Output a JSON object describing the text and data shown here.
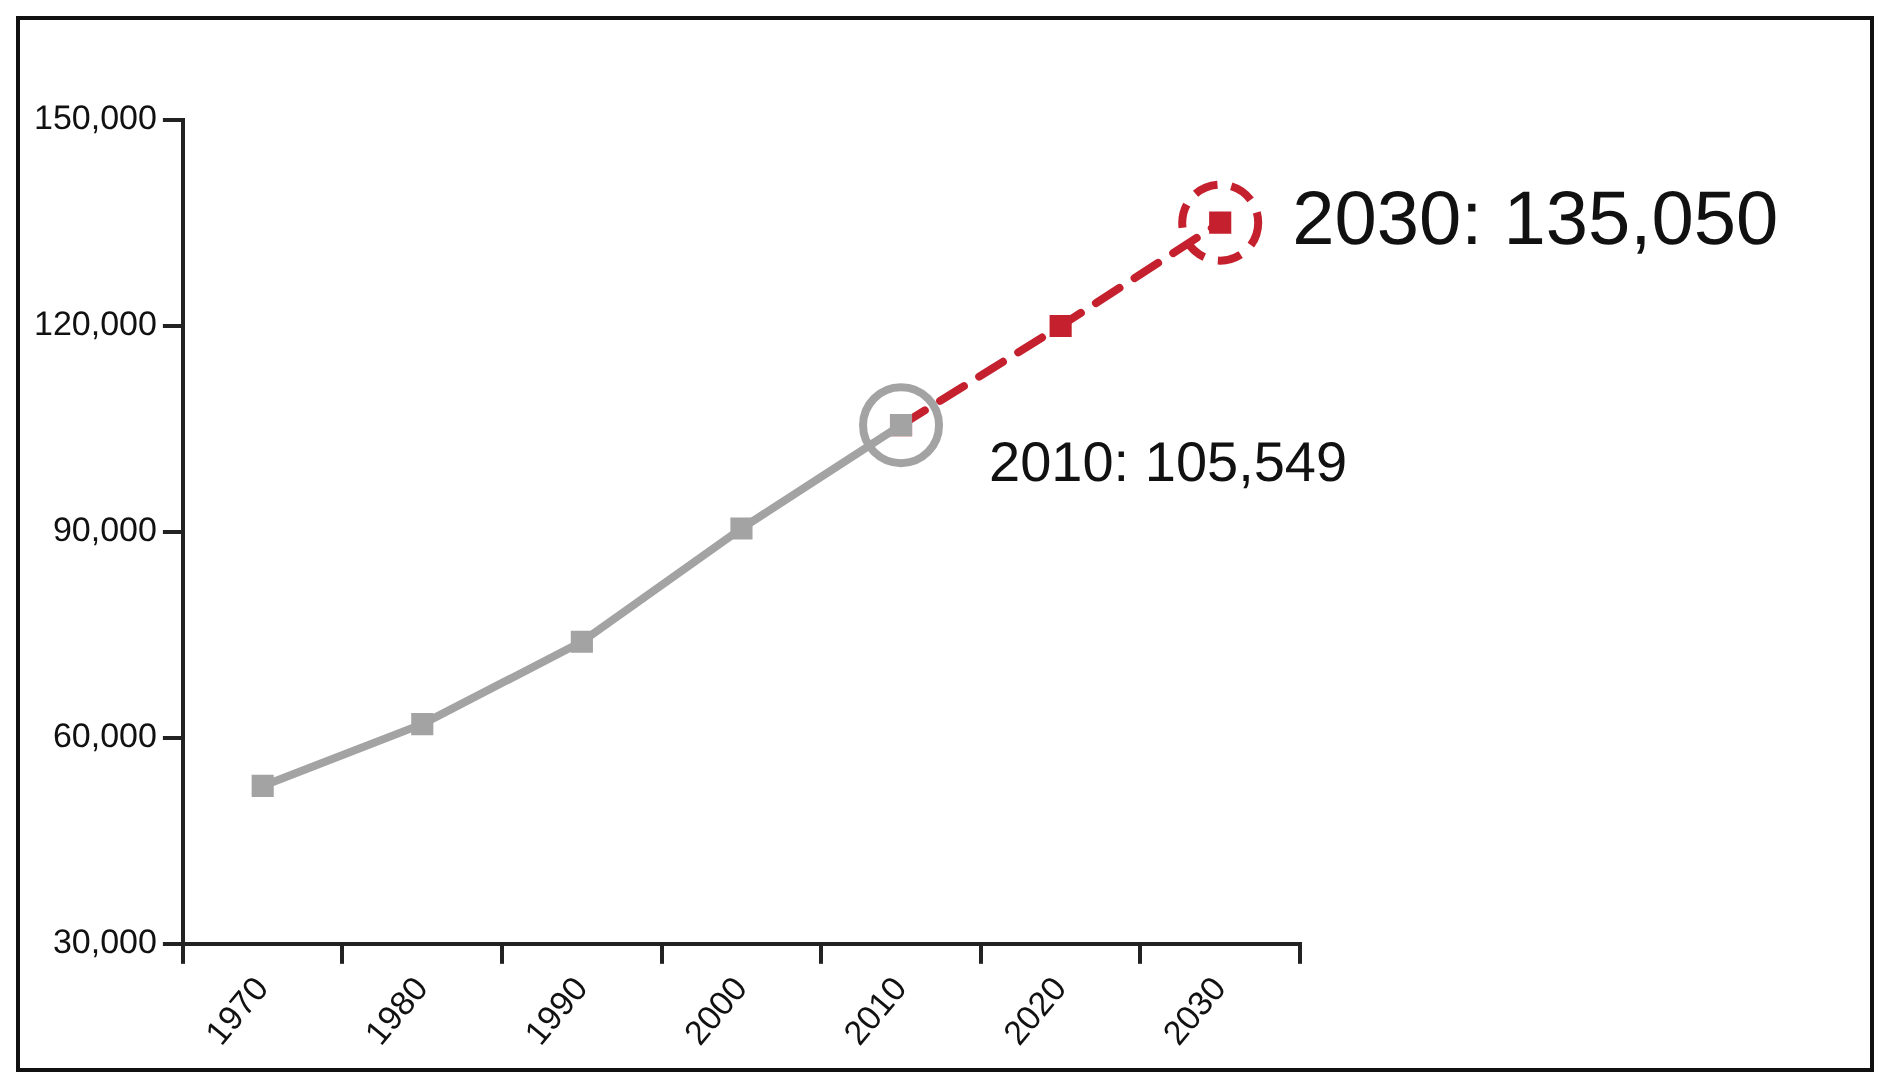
{
  "chart_data": {
    "type": "line",
    "categories": [
      "1970",
      "1980",
      "1990",
      "2000",
      "2010",
      "2020",
      "2030"
    ],
    "series": [
      {
        "color": "#a3a3a3",
        "line_style": "solid",
        "values": [
          53000,
          62000,
          74000,
          90500,
          105549,
          null,
          null
        ]
      },
      {
        "color": "#c4202e",
        "line_style": "dashed",
        "values": [
          null,
          null,
          null,
          null,
          105549,
          120000,
          135050
        ]
      }
    ],
    "ylim": [
      30000,
      150000
    ],
    "yticks": [
      {
        "value": 30000,
        "label": "30,000"
      },
      {
        "value": 60000,
        "label": "60,000"
      },
      {
        "value": 90000,
        "label": "90,000"
      },
      {
        "value": 120000,
        "label": "120,000"
      },
      {
        "value": 150000,
        "label": "150,000"
      }
    ],
    "annotations": [
      {
        "text": "2010: 105,549",
        "x": "2010",
        "y": 105549
      },
      {
        "text": "2030: 135,050",
        "x": "2030",
        "y": 135050
      }
    ],
    "marker": "square",
    "grid": false,
    "legend": false
  }
}
